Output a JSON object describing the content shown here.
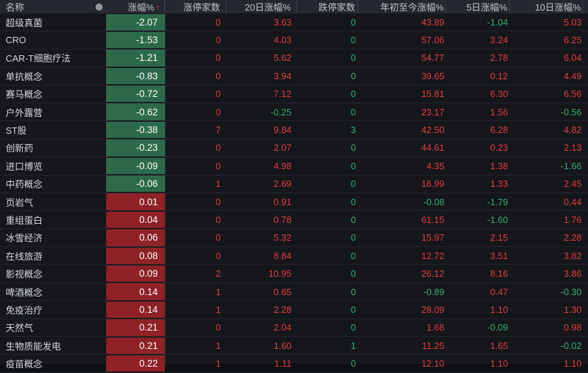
{
  "table": {
    "columns": [
      {
        "key": "name",
        "label": "名称"
      },
      {
        "key": "chg",
        "label": "涨幅%",
        "sorted": true
      },
      {
        "key": "limit_up",
        "label": "涨停家数"
      },
      {
        "key": "d20",
        "label": "20日涨幅%"
      },
      {
        "key": "limit_down",
        "label": "跌停家数"
      },
      {
        "key": "ytd",
        "label": "年初至今涨幅%"
      },
      {
        "key": "d5",
        "label": "5日涨幅%"
      },
      {
        "key": "d10",
        "label": "10日涨幅%"
      }
    ],
    "sort": {
      "column": "chg",
      "direction": "asc",
      "icon": "↑"
    },
    "header_indicator_icon": "dot",
    "rows": [
      {
        "name": "超级真菌",
        "chg": "-2.07",
        "limit_up": "0",
        "d20": "3.63",
        "limit_down": "0",
        "ytd": "43.89",
        "d5": "-1.04",
        "d10": "5.03"
      },
      {
        "name": "CRO",
        "chg": "-1.53",
        "limit_up": "0",
        "d20": "4.03",
        "limit_down": "0",
        "ytd": "57.06",
        "d5": "3.24",
        "d10": "6.25"
      },
      {
        "name": "CAR-T细胞疗法",
        "chg": "-1.21",
        "limit_up": "0",
        "d20": "5.62",
        "limit_down": "0",
        "ytd": "54.77",
        "d5": "2.78",
        "d10": "6.04"
      },
      {
        "name": "单抗概念",
        "chg": "-0.83",
        "limit_up": "0",
        "d20": "3.94",
        "limit_down": "0",
        "ytd": "39.65",
        "d5": "0.12",
        "d10": "4.49"
      },
      {
        "name": "赛马概念",
        "chg": "-0.72",
        "limit_up": "0",
        "d20": "7.12",
        "limit_down": "0",
        "ytd": "15.81",
        "d5": "6.30",
        "d10": "6.56"
      },
      {
        "name": "户外露营",
        "chg": "-0.62",
        "limit_up": "0",
        "d20": "-0.25",
        "limit_down": "0",
        "ytd": "23.17",
        "d5": "1.56",
        "d10": "-0.56"
      },
      {
        "name": "ST股",
        "chg": "-0.38",
        "limit_up": "7",
        "d20": "9.84",
        "limit_down": "3",
        "ytd": "42.50",
        "d5": "6.28",
        "d10": "4.82"
      },
      {
        "name": "创新药",
        "chg": "-0.23",
        "limit_up": "0",
        "d20": "2.07",
        "limit_down": "0",
        "ytd": "44.61",
        "d5": "0.23",
        "d10": "2.13"
      },
      {
        "name": "进口博览",
        "chg": "-0.09",
        "limit_up": "0",
        "d20": "4.98",
        "limit_down": "0",
        "ytd": "4.35",
        "d5": "1.38",
        "d10": "-1.66"
      },
      {
        "name": "中药概念",
        "chg": "-0.06",
        "limit_up": "1",
        "d20": "2.69",
        "limit_down": "0",
        "ytd": "16.99",
        "d5": "1.33",
        "d10": "2.45"
      },
      {
        "name": "页岩气",
        "chg": "0.01",
        "limit_up": "0",
        "d20": "0.91",
        "limit_down": "0",
        "ytd": "-0.08",
        "d5": "-1.79",
        "d10": "0.44"
      },
      {
        "name": "重组蛋白",
        "chg": "0.04",
        "limit_up": "0",
        "d20": "0.78",
        "limit_down": "0",
        "ytd": "61.15",
        "d5": "-1.60",
        "d10": "1.76"
      },
      {
        "name": "冰雪经济",
        "chg": "0.06",
        "limit_up": "0",
        "d20": "5.32",
        "limit_down": "0",
        "ytd": "15.97",
        "d5": "2.15",
        "d10": "2.28"
      },
      {
        "name": "在线旅游",
        "chg": "0.08",
        "limit_up": "0",
        "d20": "8.84",
        "limit_down": "0",
        "ytd": "12.72",
        "d5": "3.51",
        "d10": "3.82"
      },
      {
        "name": "影视概念",
        "chg": "0.09",
        "limit_up": "2",
        "d20": "10.95",
        "limit_down": "0",
        "ytd": "26.12",
        "d5": "8.16",
        "d10": "3.86"
      },
      {
        "name": "啤酒概念",
        "chg": "0.14",
        "limit_up": "1",
        "d20": "0.65",
        "limit_down": "0",
        "ytd": "-0.89",
        "d5": "0.47",
        "d10": "-0.30"
      },
      {
        "name": "免疫治疗",
        "chg": "0.14",
        "limit_up": "1",
        "d20": "2.28",
        "limit_down": "0",
        "ytd": "28.09",
        "d5": "1.10",
        "d10": "1.30"
      },
      {
        "name": "天然气",
        "chg": "0.21",
        "limit_up": "0",
        "d20": "2.04",
        "limit_down": "0",
        "ytd": "1.68",
        "d5": "-0.09",
        "d10": "0.98"
      },
      {
        "name": "生物质能发电",
        "chg": "0.21",
        "limit_up": "1",
        "d20": "1.60",
        "limit_down": "1",
        "ytd": "11.25",
        "d5": "1.65",
        "d10": "-0.02"
      },
      {
        "name": "疫苗概念",
        "chg": "0.22",
        "limit_up": "1",
        "d20": "1.11",
        "limit_down": "0",
        "ytd": "12.10",
        "d5": "1.10",
        "d10": "1.10",
        "partial": true
      }
    ]
  },
  "colors": {
    "page_bg": "#15171b",
    "header_bg": "#24272d",
    "header_text": "#c3c5c9",
    "name_text": "#d4d6d9",
    "up_text": "#e03c41",
    "down_text": "#3aaa6e",
    "gain_cell_bg": "#8e2226",
    "loss_cell_bg": "#2d6a4c",
    "sort_arrow": "#e03c41",
    "dot_icon": "#96989b"
  }
}
